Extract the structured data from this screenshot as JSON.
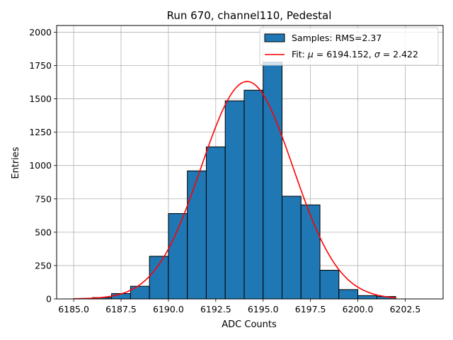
{
  "chart_data": {
    "type": "bar",
    "title": "Run 670, channel110, Pedestal",
    "xlabel": "ADC Counts",
    "ylabel": "Entries",
    "xlim": [
      6184.1,
      6204.5
    ],
    "ylim": [
      0,
      2050
    ],
    "xticks": [
      6185.0,
      6187.5,
      6190.0,
      6192.5,
      6195.0,
      6197.5,
      6200.0,
      6202.5
    ],
    "xtick_labels": [
      "6185.0",
      "6187.5",
      "6190.0",
      "6192.5",
      "6195.0",
      "6197.5",
      "6200.0",
      "6202.5"
    ],
    "yticks": [
      0,
      250,
      500,
      750,
      1000,
      1250,
      1500,
      1750,
      2000
    ],
    "ytick_labels": [
      "0",
      "250",
      "500",
      "750",
      "1000",
      "1250",
      "1500",
      "1750",
      "2000"
    ],
    "grid": true,
    "legend_position": "top-right",
    "bar_color": "#1f77b4",
    "fit_color": "#ff0000",
    "bins": [
      {
        "left": 6186,
        "right": 6187,
        "count": 10
      },
      {
        "left": 6187,
        "right": 6188,
        "count": 40
      },
      {
        "left": 6188,
        "right": 6189,
        "count": 95
      },
      {
        "left": 6189,
        "right": 6190,
        "count": 320
      },
      {
        "left": 6190,
        "right": 6191,
        "count": 640
      },
      {
        "left": 6191,
        "right": 6192,
        "count": 960
      },
      {
        "left": 6192,
        "right": 6193,
        "count": 1140
      },
      {
        "left": 6193,
        "right": 6194,
        "count": 1485
      },
      {
        "left": 6194,
        "right": 6195,
        "count": 1565
      },
      {
        "left": 6195,
        "right": 6196,
        "count": 1775
      },
      {
        "left": 6196,
        "right": 6197,
        "count": 770
      },
      {
        "left": 6197,
        "right": 6198,
        "count": 705
      },
      {
        "left": 6198,
        "right": 6199,
        "count": 215
      },
      {
        "left": 6199,
        "right": 6200,
        "count": 70
      },
      {
        "left": 6200,
        "right": 6201,
        "count": 25
      },
      {
        "left": 6201,
        "right": 6202,
        "count": 18
      }
    ],
    "fit": {
      "mu": 6194.152,
      "sigma": 2.422,
      "amplitude": 1630,
      "x_range": [
        6185.0,
        6202.0
      ]
    },
    "legend": {
      "samples_label": "Samples: RMS=2.37",
      "fit_prefix": "Fit: ",
      "fit_mu_symbol": "μ",
      "fit_mu_text": " = 6194.152, ",
      "fit_sigma_symbol": "σ",
      "fit_sigma_text": " = 2.422"
    }
  }
}
